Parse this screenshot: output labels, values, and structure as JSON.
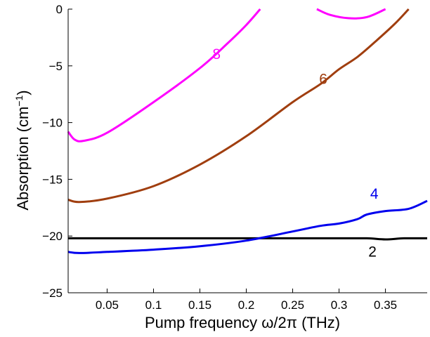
{
  "chart_data": {
    "type": "line",
    "title": "",
    "xlabel": "Pump frequency ω/2π (THz)",
    "ylabel_main": "Absorption (cm",
    "ylabel_sup": "−1",
    "ylabel_close": ")",
    "xlim": [
      0.008,
      0.395
    ],
    "ylim": [
      -25,
      0
    ],
    "xticks": [
      0.05,
      0.1,
      0.15,
      0.2,
      0.25,
      0.3,
      0.35
    ],
    "xtick_labels": [
      "0.05",
      "0.1",
      "0.15",
      "0.2",
      "0.25",
      "0.3",
      "0.35"
    ],
    "yticks": [
      0,
      -5,
      -10,
      -15,
      -20,
      -25
    ],
    "ytick_labels": [
      "0",
      "−5",
      "−10",
      "−15",
      "−20",
      "−25"
    ],
    "grid": false,
    "series": [
      {
        "name": "2",
        "color": "#000000",
        "label_at": [
          0.336,
          -21.8
        ],
        "segments": [
          [
            [
              0.008,
              -20.2
            ],
            [
              0.05,
              -20.2
            ],
            [
              0.1,
              -20.2
            ],
            [
              0.15,
              -20.2
            ],
            [
              0.2,
              -20.2
            ],
            [
              0.25,
              -20.2
            ],
            [
              0.3,
              -20.2
            ],
            [
              0.33,
              -20.2
            ],
            [
              0.35,
              -20.3
            ],
            [
              0.37,
              -20.2
            ],
            [
              0.395,
              -20.2
            ]
          ]
        ]
      },
      {
        "name": "4",
        "color": "#0000ee",
        "label_at": [
          0.338,
          -16.7
        ],
        "segments": [
          [
            [
              0.008,
              -21.4
            ],
            [
              0.02,
              -21.5
            ],
            [
              0.05,
              -21.4
            ],
            [
              0.1,
              -21.2
            ],
            [
              0.15,
              -20.9
            ],
            [
              0.2,
              -20.4
            ],
            [
              0.25,
              -19.6
            ],
            [
              0.28,
              -19.1
            ],
            [
              0.3,
              -18.9
            ],
            [
              0.32,
              -18.5
            ],
            [
              0.33,
              -18.1
            ],
            [
              0.35,
              -17.8
            ],
            [
              0.375,
              -17.6
            ],
            [
              0.395,
              -16.9
            ]
          ]
        ]
      },
      {
        "name": "6",
        "color": "#a03e0f",
        "label_at": [
          0.283,
          -6.6
        ],
        "segments": [
          [
            [
              0.008,
              -16.8
            ],
            [
              0.02,
              -17.0
            ],
            [
              0.05,
              -16.7
            ],
            [
              0.1,
              -15.6
            ],
            [
              0.15,
              -13.7
            ],
            [
              0.2,
              -11.2
            ],
            [
              0.25,
              -8.2
            ],
            [
              0.28,
              -6.6
            ],
            [
              0.3,
              -5.3
            ],
            [
              0.32,
              -4.2
            ],
            [
              0.34,
              -2.8
            ],
            [
              0.36,
              -1.3
            ],
            [
              0.375,
              0.0
            ]
          ]
        ]
      },
      {
        "name": "8",
        "color": "#ff00ff",
        "label_at": [
          0.168,
          -4.4
        ],
        "segments": [
          [
            [
              0.008,
              -10.8
            ],
            [
              0.015,
              -11.5
            ],
            [
              0.025,
              -11.6
            ],
            [
              0.05,
              -10.9
            ],
            [
              0.1,
              -8.2
            ],
            [
              0.15,
              -5.2
            ],
            [
              0.18,
              -3.0
            ],
            [
              0.2,
              -1.4
            ],
            [
              0.215,
              0.0
            ]
          ],
          [
            [
              0.276,
              0.0
            ],
            [
              0.29,
              -0.5
            ],
            [
              0.31,
              -0.8
            ],
            [
              0.33,
              -0.7
            ],
            [
              0.35,
              0.0
            ]
          ]
        ]
      }
    ]
  }
}
